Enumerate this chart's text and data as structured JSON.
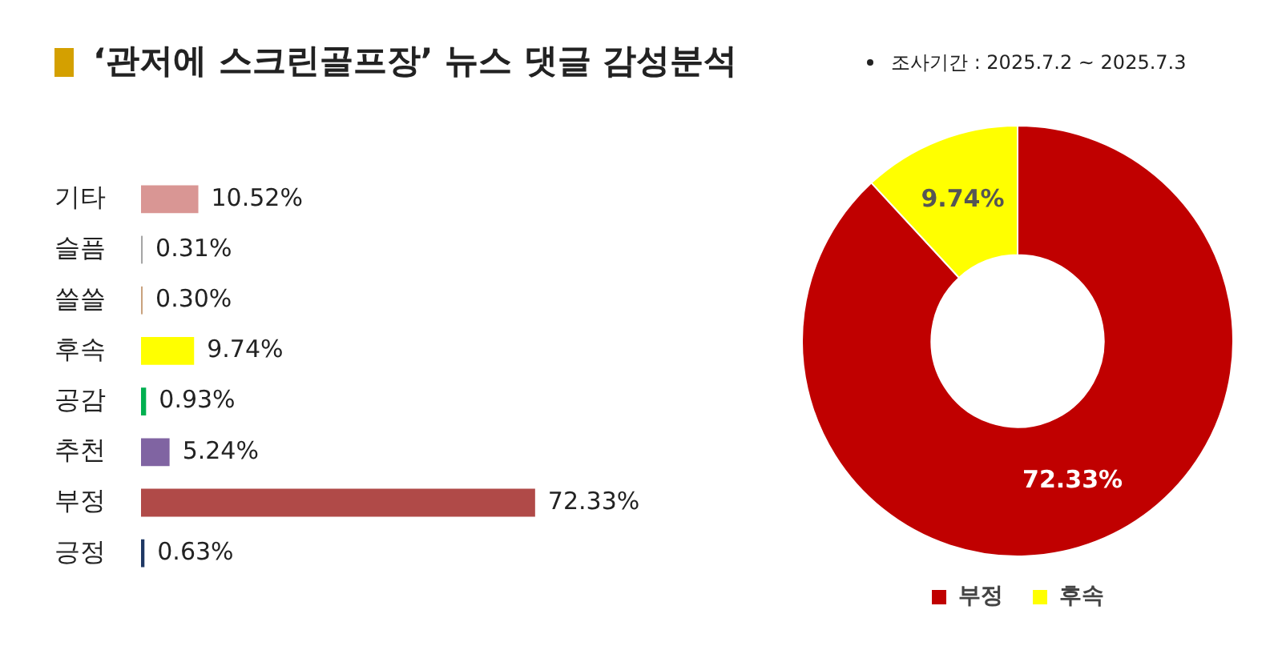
{
  "chart_data": [
    {
      "type": "bar",
      "orientation": "horizontal",
      "title": "‘관저에 스크린골프장’ 뉴스 댓글 감성분석",
      "annotations": [
        "조사기간 : 2025.7.2 ~ 2025.7.3"
      ],
      "categories": [
        "기타",
        "슬픔",
        "쓸쓸",
        "후속",
        "공감",
        "추천",
        "부정",
        "긍정"
      ],
      "values": [
        10.52,
        0.31,
        0.3,
        9.74,
        0.93,
        5.24,
        72.33,
        0.63
      ],
      "colors": [
        "#d99694",
        "#a6a6a6",
        "#c9a27e",
        "#ffff00",
        "#00b050",
        "#8064a2",
        "#b04a48",
        "#1f3864"
      ],
      "value_labels": [
        "10.52%",
        "0.31%",
        "0.30%",
        "9.74%",
        "0.93%",
        "5.24%",
        "72.33%",
        "0.63%"
      ],
      "tick_labels": "y",
      "legend": false
    },
    {
      "type": "donut",
      "categories": [
        "부정",
        "후속"
      ],
      "values": [
        72.33,
        9.74
      ],
      "colors": [
        "#c00000",
        "#ffff00"
      ],
      "value_labels": [
        "72.33%",
        "9.74%"
      ],
      "legend": "bottom"
    }
  ]
}
